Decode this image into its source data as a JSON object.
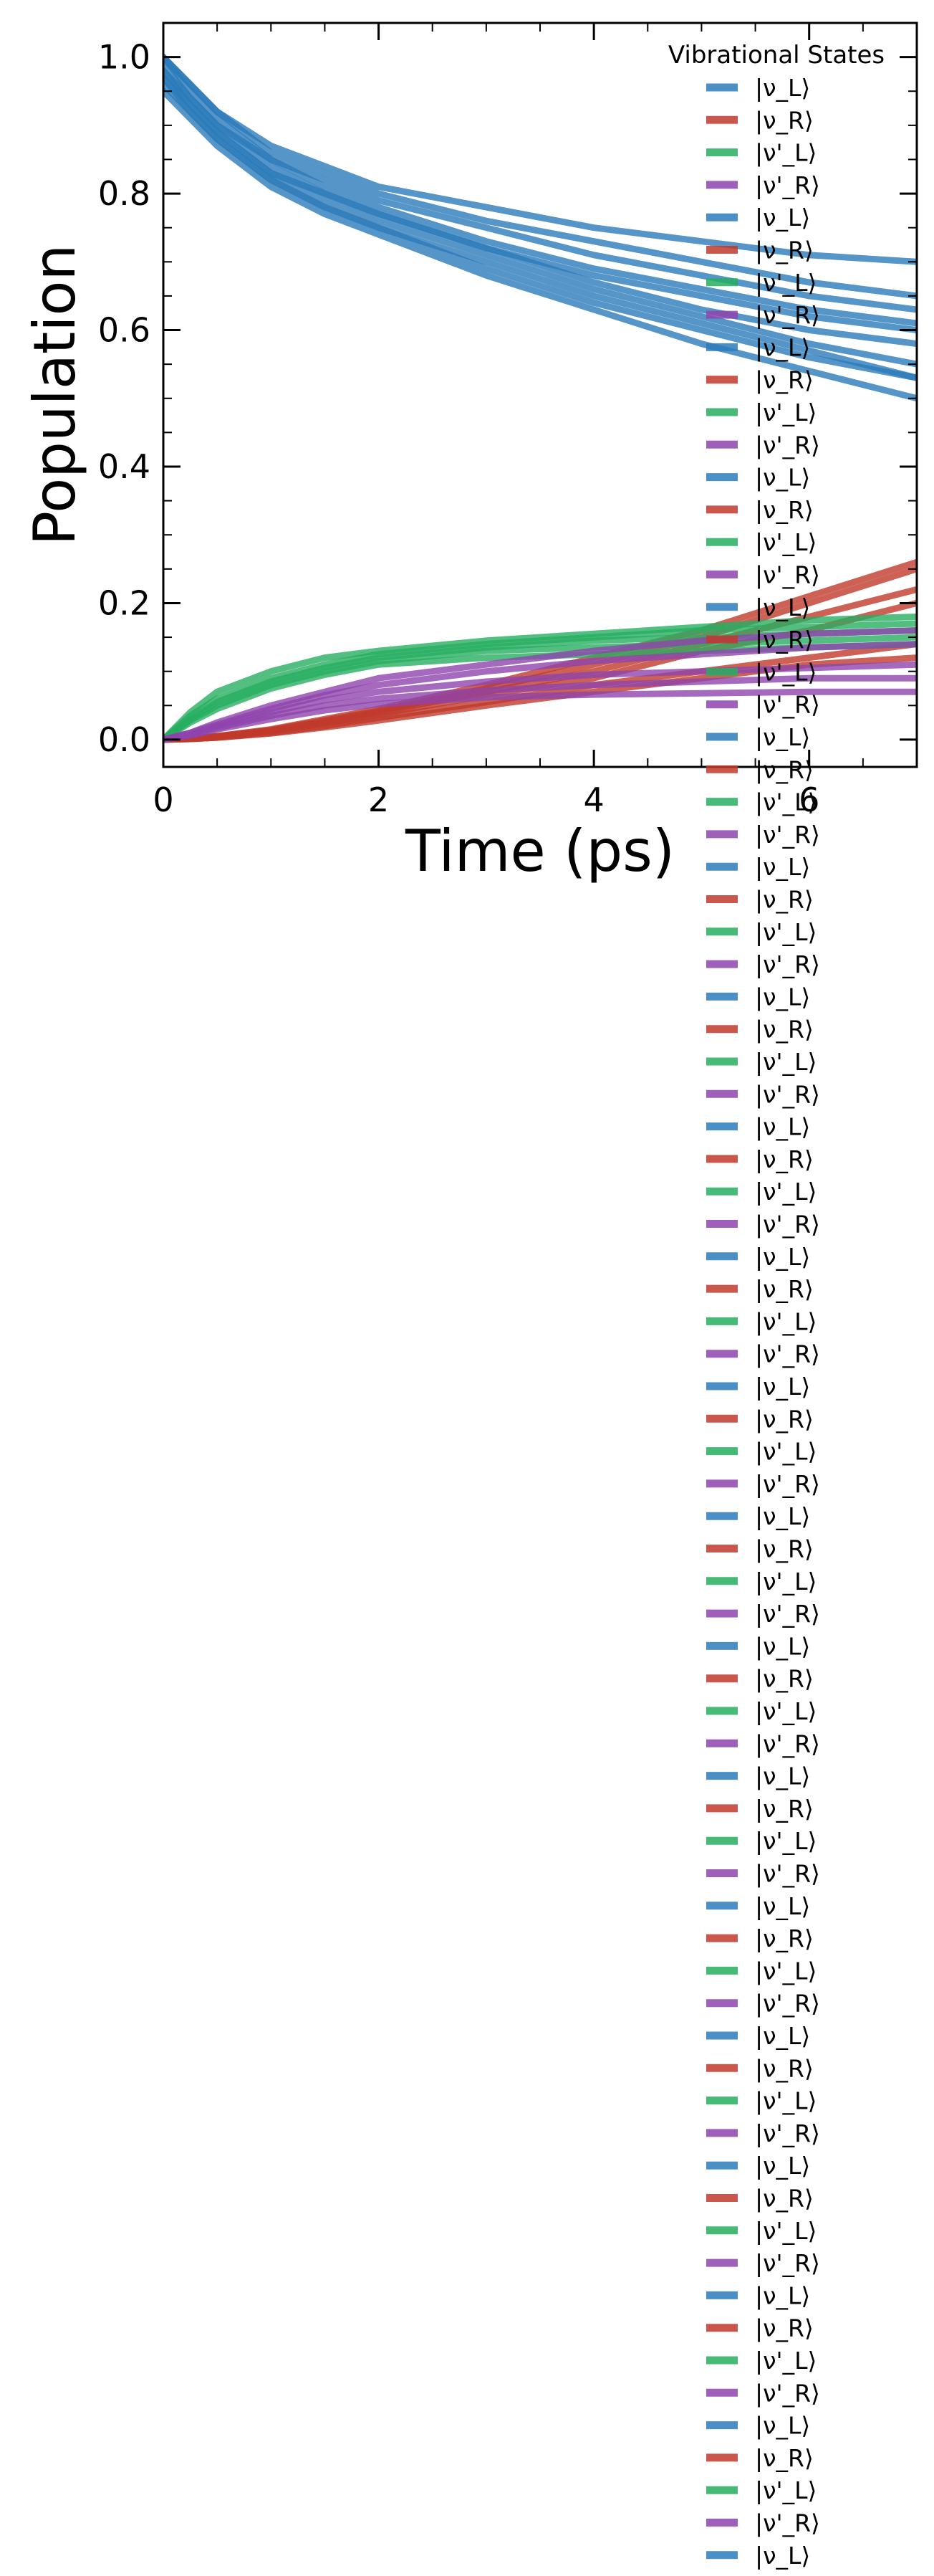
{
  "chart_data": {
    "type": "line",
    "title": "",
    "xlabel": "Time (ps)",
    "ylabel": "Population",
    "xlim": [
      0,
      7.0
    ],
    "ylim": [
      -0.04,
      1.05
    ],
    "x_ticks": [
      0,
      2,
      4,
      6
    ],
    "x_tick_labels": [
      "0",
      "2",
      "4",
      "6"
    ],
    "y_ticks": [
      0.0,
      0.2,
      0.4,
      0.6,
      0.8,
      1.0
    ],
    "y_tick_labels": [
      "0.0",
      "0.2",
      "0.4",
      "0.6",
      "0.8",
      "1.0"
    ],
    "grid": false,
    "legend": {
      "title": "Vibrational States",
      "placement": "top-right, extending below the plot",
      "repeat_count": 20,
      "entries": [
        {
          "label": "|ν_L⟩",
          "color": "#2b7bba"
        },
        {
          "label": "|ν_R⟩",
          "color": "#c0392b"
        },
        {
          "label": "|ν'_L⟩",
          "color": "#27ae60"
        },
        {
          "label": "|ν'_R⟩",
          "color": "#8e44ad"
        }
      ]
    },
    "x": [
      0,
      0.25,
      0.5,
      1,
      1.5,
      2,
      3,
      4,
      5,
      6,
      7
    ],
    "series_groups": [
      {
        "state": "|ν_L⟩",
        "color": "#2b7bba",
        "series": [
          [
            1.0,
            0.95,
            0.91,
            0.85,
            0.81,
            0.78,
            0.73,
            0.69,
            0.66,
            0.63,
            0.61
          ],
          [
            0.99,
            0.94,
            0.9,
            0.84,
            0.8,
            0.77,
            0.72,
            0.68,
            0.65,
            0.62,
            0.6
          ],
          [
            0.98,
            0.93,
            0.89,
            0.83,
            0.8,
            0.77,
            0.72,
            0.67,
            0.63,
            0.6,
            0.58
          ],
          [
            0.97,
            0.93,
            0.89,
            0.83,
            0.79,
            0.76,
            0.71,
            0.66,
            0.62,
            0.58,
            0.55
          ],
          [
            0.96,
            0.92,
            0.88,
            0.82,
            0.78,
            0.75,
            0.7,
            0.65,
            0.61,
            0.57,
            0.53
          ],
          [
            0.95,
            0.91,
            0.87,
            0.81,
            0.77,
            0.74,
            0.68,
            0.63,
            0.58,
            0.54,
            0.5
          ],
          [
            1.0,
            0.96,
            0.92,
            0.86,
            0.83,
            0.8,
            0.76,
            0.73,
            0.7,
            0.67,
            0.65
          ],
          [
            1.0,
            0.96,
            0.92,
            0.87,
            0.84,
            0.81,
            0.78,
            0.75,
            0.73,
            0.71,
            0.7
          ],
          [
            0.98,
            0.94,
            0.9,
            0.85,
            0.82,
            0.79,
            0.75,
            0.71,
            0.68,
            0.65,
            0.63
          ],
          [
            0.97,
            0.92,
            0.88,
            0.82,
            0.78,
            0.75,
            0.69,
            0.64,
            0.6,
            0.56,
            0.53
          ]
        ]
      },
      {
        "state": "|ν_R⟩",
        "color": "#c0392b",
        "series": [
          [
            0.0,
            0.002,
            0.005,
            0.015,
            0.03,
            0.045,
            0.08,
            0.12,
            0.16,
            0.21,
            0.26
          ],
          [
            0.0,
            0.002,
            0.005,
            0.014,
            0.028,
            0.042,
            0.075,
            0.11,
            0.15,
            0.2,
            0.25
          ],
          [
            0.0,
            0.002,
            0.004,
            0.013,
            0.026,
            0.04,
            0.07,
            0.1,
            0.14,
            0.18,
            0.22
          ],
          [
            0.0,
            0.001,
            0.004,
            0.012,
            0.024,
            0.037,
            0.065,
            0.09,
            0.13,
            0.16,
            0.2
          ],
          [
            0.0,
            0.001,
            0.003,
            0.01,
            0.02,
            0.032,
            0.055,
            0.08,
            0.1,
            0.12,
            0.14
          ],
          [
            0.0,
            0.001,
            0.003,
            0.009,
            0.018,
            0.028,
            0.05,
            0.07,
            0.09,
            0.11,
            0.12
          ]
        ]
      },
      {
        "state": "|ν'_L⟩",
        "color": "#27ae60",
        "series": [
          [
            0.0,
            0.04,
            0.07,
            0.1,
            0.12,
            0.13,
            0.145,
            0.155,
            0.165,
            0.175,
            0.18
          ],
          [
            0.0,
            0.035,
            0.06,
            0.09,
            0.11,
            0.125,
            0.14,
            0.15,
            0.16,
            0.165,
            0.17
          ],
          [
            0.0,
            0.03,
            0.055,
            0.085,
            0.105,
            0.12,
            0.135,
            0.145,
            0.15,
            0.155,
            0.16
          ],
          [
            0.0,
            0.028,
            0.05,
            0.08,
            0.1,
            0.115,
            0.13,
            0.135,
            0.14,
            0.145,
            0.15
          ],
          [
            0.0,
            0.025,
            0.045,
            0.075,
            0.095,
            0.11,
            0.12,
            0.125,
            0.13,
            0.135,
            0.14
          ]
        ]
      },
      {
        "state": "|ν'_R⟩",
        "color": "#8e44ad",
        "series": [
          [
            0.0,
            0.01,
            0.025,
            0.05,
            0.07,
            0.09,
            0.11,
            0.13,
            0.145,
            0.155,
            0.16
          ],
          [
            0.0,
            0.01,
            0.022,
            0.045,
            0.065,
            0.08,
            0.1,
            0.115,
            0.125,
            0.135,
            0.14
          ],
          [
            0.0,
            0.008,
            0.02,
            0.04,
            0.058,
            0.07,
            0.085,
            0.095,
            0.1,
            0.105,
            0.11
          ],
          [
            0.0,
            0.007,
            0.017,
            0.035,
            0.05,
            0.06,
            0.072,
            0.08,
            0.085,
            0.09,
            0.09
          ],
          [
            0.0,
            0.006,
            0.015,
            0.03,
            0.043,
            0.052,
            0.062,
            0.066,
            0.068,
            0.07,
            0.07
          ]
        ]
      }
    ]
  }
}
